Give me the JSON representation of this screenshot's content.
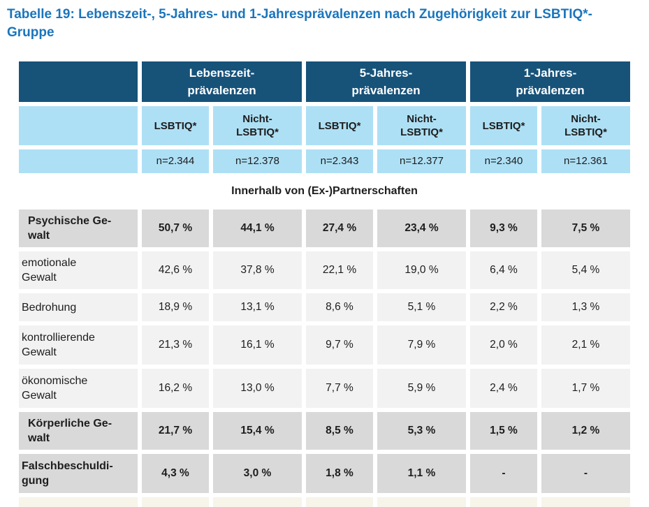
{
  "title": "Tabelle 19: Lebenszeit-, 5-Jahres- und 1-Jahresprävalenzen nach Zugehörigkeit zur LSBTIQ*-\nGruppe",
  "colors": {
    "title-blue": "#1a75bc",
    "header-blue": "#175279",
    "cell-blue": "#aee0f5",
    "row-gray": "#d9d9d9",
    "row-light": "#f2f2f2",
    "cutoff": "#f7f4ea",
    "text": "#1d1d1d"
  },
  "table": {
    "group_headers": [
      "Lebenszeit-\nprävalenzen",
      "5-Jahres-\nprävalenzen",
      "1-Jahres-\nprävalenzen"
    ],
    "sub_headers": [
      "LSBTIQ*",
      "Nicht-\nLSBTIQ*",
      "LSBTIQ*",
      "Nicht-\nLSBTIQ*",
      "LSBTIQ*",
      "Nicht-\nLSBTIQ*"
    ],
    "sample_sizes": [
      "n=2.344",
      "n=12.378",
      "n=2.343",
      "n=12.377",
      "n=2.340",
      "n=12.361"
    ],
    "section_header": "Innerhalb von (Ex-)Partnerschaften",
    "rows": [
      {
        "label": "Psychische Ge-\nwalt",
        "values": [
          "50,7 %",
          "44,1 %",
          "27,4 %",
          "23,4 %",
          "9,3 %",
          "7,5 %"
        ]
      },
      {
        "label": "emotionale\nGewalt",
        "values": [
          "42,6 %",
          "37,8 %",
          "22,1 %",
          "19,0 %",
          "6,4 %",
          "5,4 %"
        ]
      },
      {
        "label": "Bedrohung",
        "values": [
          "18,9 %",
          "13,1 %",
          "8,6 %",
          "5,1 %",
          "2,2 %",
          "1,3 %"
        ]
      },
      {
        "label": "kontrollierende\nGewalt",
        "values": [
          "21,3 %",
          "16,1 %",
          "9,7 %",
          "7,9 %",
          "2,0 %",
          "2,1 %"
        ]
      },
      {
        "label": "ökonomische\nGewalt",
        "values": [
          "16,2 %",
          "13,0 %",
          "7,7 %",
          "5,9 %",
          "2,4 %",
          "1,7 %"
        ]
      },
      {
        "label": "Körperliche Ge-\nwalt",
        "values": [
          "21,7 %",
          "15,4 %",
          "8,5 %",
          "5,3 %",
          "1,5 %",
          "1,2 %"
        ]
      },
      {
        "label": "Falschbeschuldi-\ngung",
        "values": [
          "4,3 %",
          "3,0 %",
          "1,8 %",
          "1,1 %",
          "-",
          "-"
        ]
      }
    ]
  }
}
